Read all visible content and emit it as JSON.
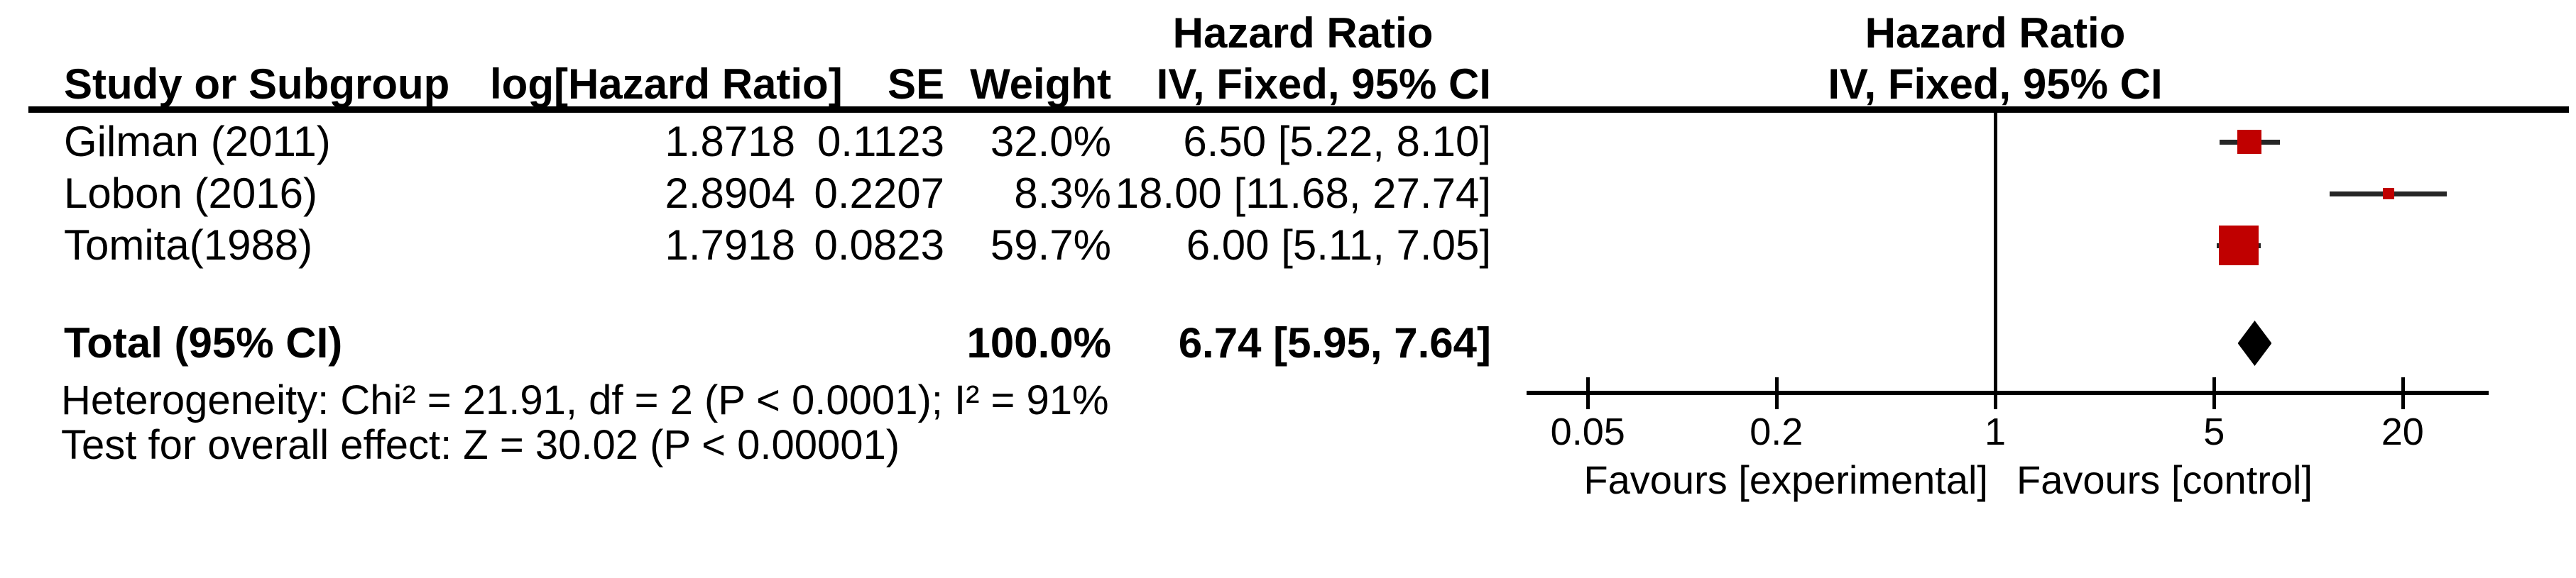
{
  "table": {
    "col_study": "Study or Subgroup",
    "col_log_hr": "log[Hazard Ratio]",
    "col_se": "SE",
    "col_weight": "Weight",
    "effect_header_table": "Hazard Ratio",
    "effect_method_table": "IV, Fixed, 95% CI",
    "effect_header_plot": "Hazard Ratio",
    "effect_method_plot": "IV, Fixed, 95% CI"
  },
  "colors": {
    "marker_red": "#c00000",
    "diamond_black": "#000000",
    "line_black": "#000000",
    "ci_line": "#262626"
  },
  "chart_data": {
    "type": "forest",
    "effect_measure": "Hazard Ratio",
    "model": "IV, Fixed, 95% CI",
    "x_scale": "log",
    "x_ticks": [
      0.05,
      0.2,
      1,
      5,
      20
    ],
    "x_tick_labels": [
      "0.05",
      "0.2",
      "1",
      "5",
      "20"
    ],
    "studies": [
      {
        "name": "Gilman (2011)",
        "log_hr_text": "1.8718",
        "se_text": "0.1123",
        "weight_text": "32.0%",
        "ci_text": "6.50 [5.22, 8.10]",
        "log_hr": 1.8718,
        "se": 0.1123,
        "weight_pct": 32.0,
        "hr": 6.5,
        "ci_low": 5.22,
        "ci_high": 8.1
      },
      {
        "name": "Lobon (2016)",
        "log_hr_text": "2.8904",
        "se_text": "0.2207",
        "weight_text": "8.3%",
        "ci_text": "18.00 [11.68, 27.74]",
        "log_hr": 2.8904,
        "se": 0.2207,
        "weight_pct": 8.3,
        "hr": 18.0,
        "ci_low": 11.68,
        "ci_high": 27.74
      },
      {
        "name": "Tomita(1988)",
        "log_hr_text": "1.7918",
        "se_text": "0.0823",
        "weight_text": "59.7%",
        "ci_text": "6.00 [5.11, 7.05]",
        "log_hr": 1.7918,
        "se": 0.0823,
        "weight_pct": 59.7,
        "hr": 6.0,
        "ci_low": 5.11,
        "ci_high": 7.05
      }
    ],
    "total": {
      "label": "Total (95% CI)",
      "weight_text": "100.0%",
      "ci_text": "6.74 [5.95, 7.64]",
      "weight_pct": 100.0,
      "hr": 6.74,
      "ci_low": 5.95,
      "ci_high": 7.64
    },
    "heterogeneity": "Heterogeneity: Chi² = 21.91, df = 2 (P < 0.0001); I² = 91%",
    "overall_effect": "Test for overall effect: Z = 30.02 (P < 0.00001)",
    "favours_left": "Favours [experimental]",
    "favours_right": "Favours [control]"
  }
}
